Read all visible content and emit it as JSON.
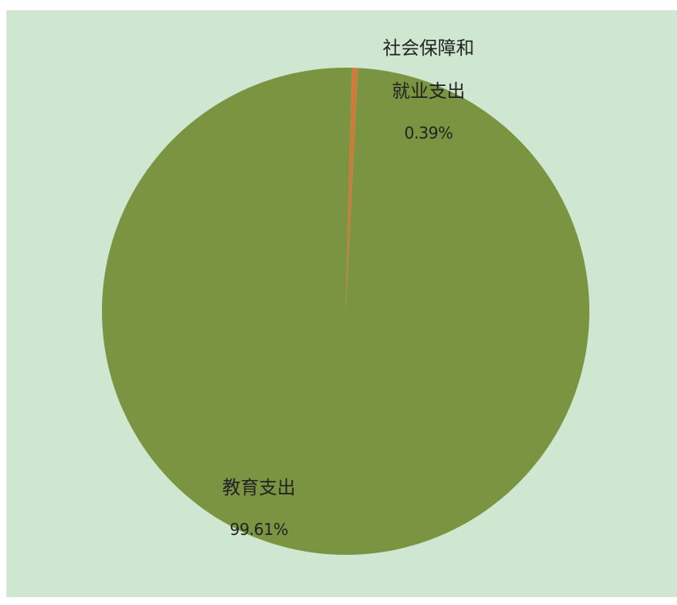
{
  "chart_data": {
    "type": "pie",
    "title": "",
    "start_angle_deg": 0,
    "direction": "clockwise",
    "slices": [
      {
        "name": "社会保障和就业支出",
        "label_lines": [
          "社会保障和",
          "就业支出"
        ],
        "value": 0.39,
        "percent_label": "0.39%",
        "color": "#cf7a3a"
      },
      {
        "name": "教育支出",
        "label_lines": [
          "教育支出"
        ],
        "value": 99.61,
        "percent_label": "99.61%",
        "color": "#7a9442"
      }
    ],
    "background_color": "#cfe7d0",
    "legend": "none"
  }
}
